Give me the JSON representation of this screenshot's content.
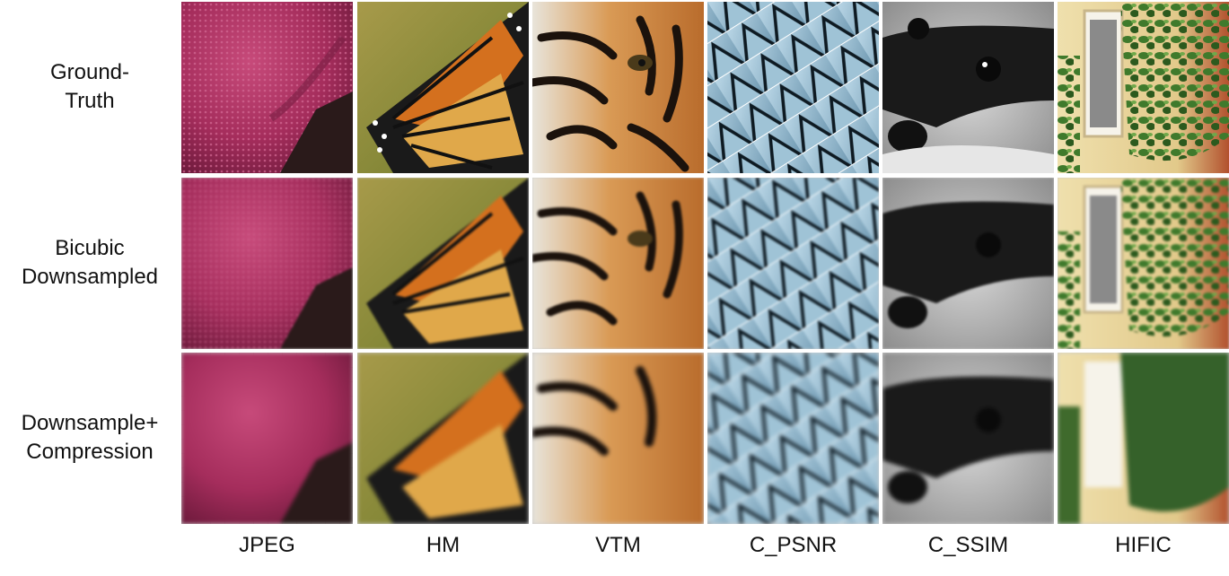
{
  "rows": [
    {
      "label": "Ground-\nTruth"
    },
    {
      "label": "Bicubic\nDownsampled"
    },
    {
      "label": "Downsample+\nCompression"
    }
  ],
  "columns": [
    {
      "label": "JPEG",
      "image": "starfish"
    },
    {
      "label": "HM",
      "image": "butterfly"
    },
    {
      "label": "VTM",
      "image": "tiger"
    },
    {
      "label": "C_PSNR",
      "image": "glass-facade"
    },
    {
      "label": "C_SSIM",
      "image": "raccoon"
    },
    {
      "label": "HIFIC",
      "image": "ivy-window"
    }
  ],
  "colors": {
    "starfish": "#a82f5e",
    "butterfly": "#d7782a",
    "tiger": "#c37a3a",
    "glass": "#8fb4c9",
    "raccoon": "#6f6f6f",
    "ivy": "#3d6b2a",
    "wall": "#e9d7a0"
  }
}
